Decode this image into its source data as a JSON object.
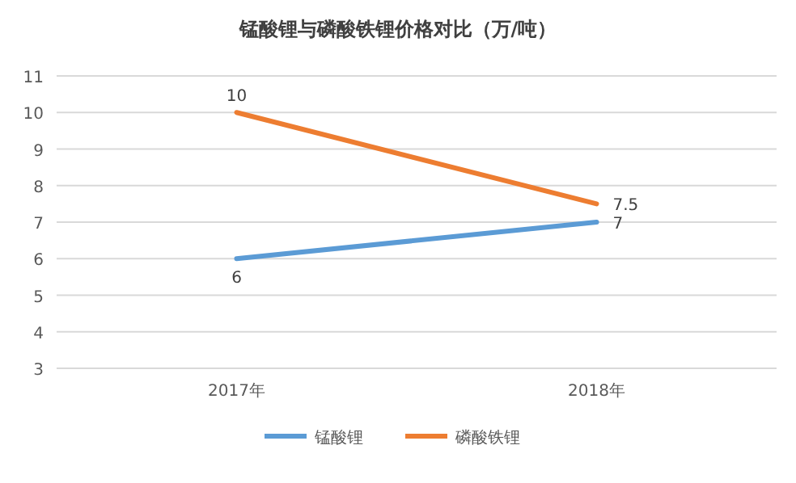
{
  "chart_data": {
    "type": "line",
    "title": "锰酸锂与磷酸铁锂价格对比（万/吨）",
    "categories": [
      "2017年",
      "2018年"
    ],
    "series": [
      {
        "name": "锰酸锂",
        "color": "#5b9bd5",
        "values": [
          6,
          7
        ]
      },
      {
        "name": "磷酸铁锂",
        "color": "#ed7d31",
        "values": [
          10,
          7.5
        ]
      }
    ],
    "ylim": [
      3,
      11
    ],
    "yticks": [
      3,
      4,
      5,
      6,
      7,
      8,
      9,
      10,
      11
    ],
    "grid": "y",
    "legend": "bottom",
    "data_labels": true,
    "marker": "none",
    "line_style": "solid"
  }
}
